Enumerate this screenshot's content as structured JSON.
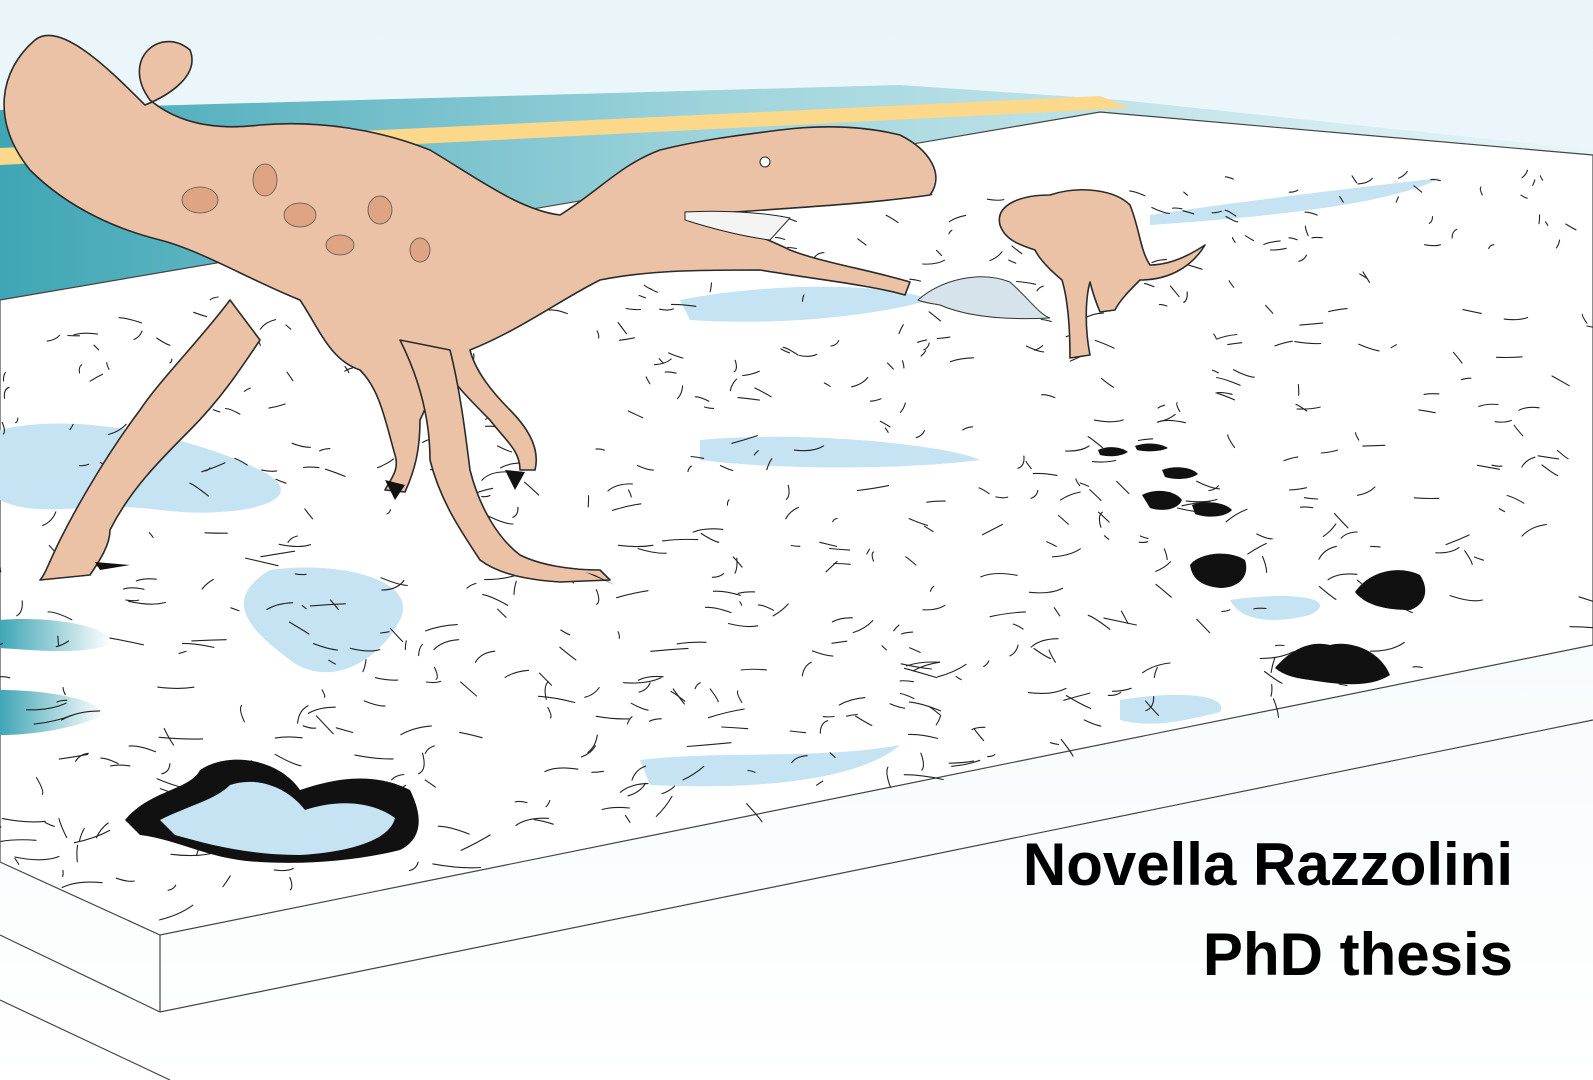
{
  "cover": {
    "author": "Novella Razzolini",
    "subtitle": "PhD thesis"
  }
}
